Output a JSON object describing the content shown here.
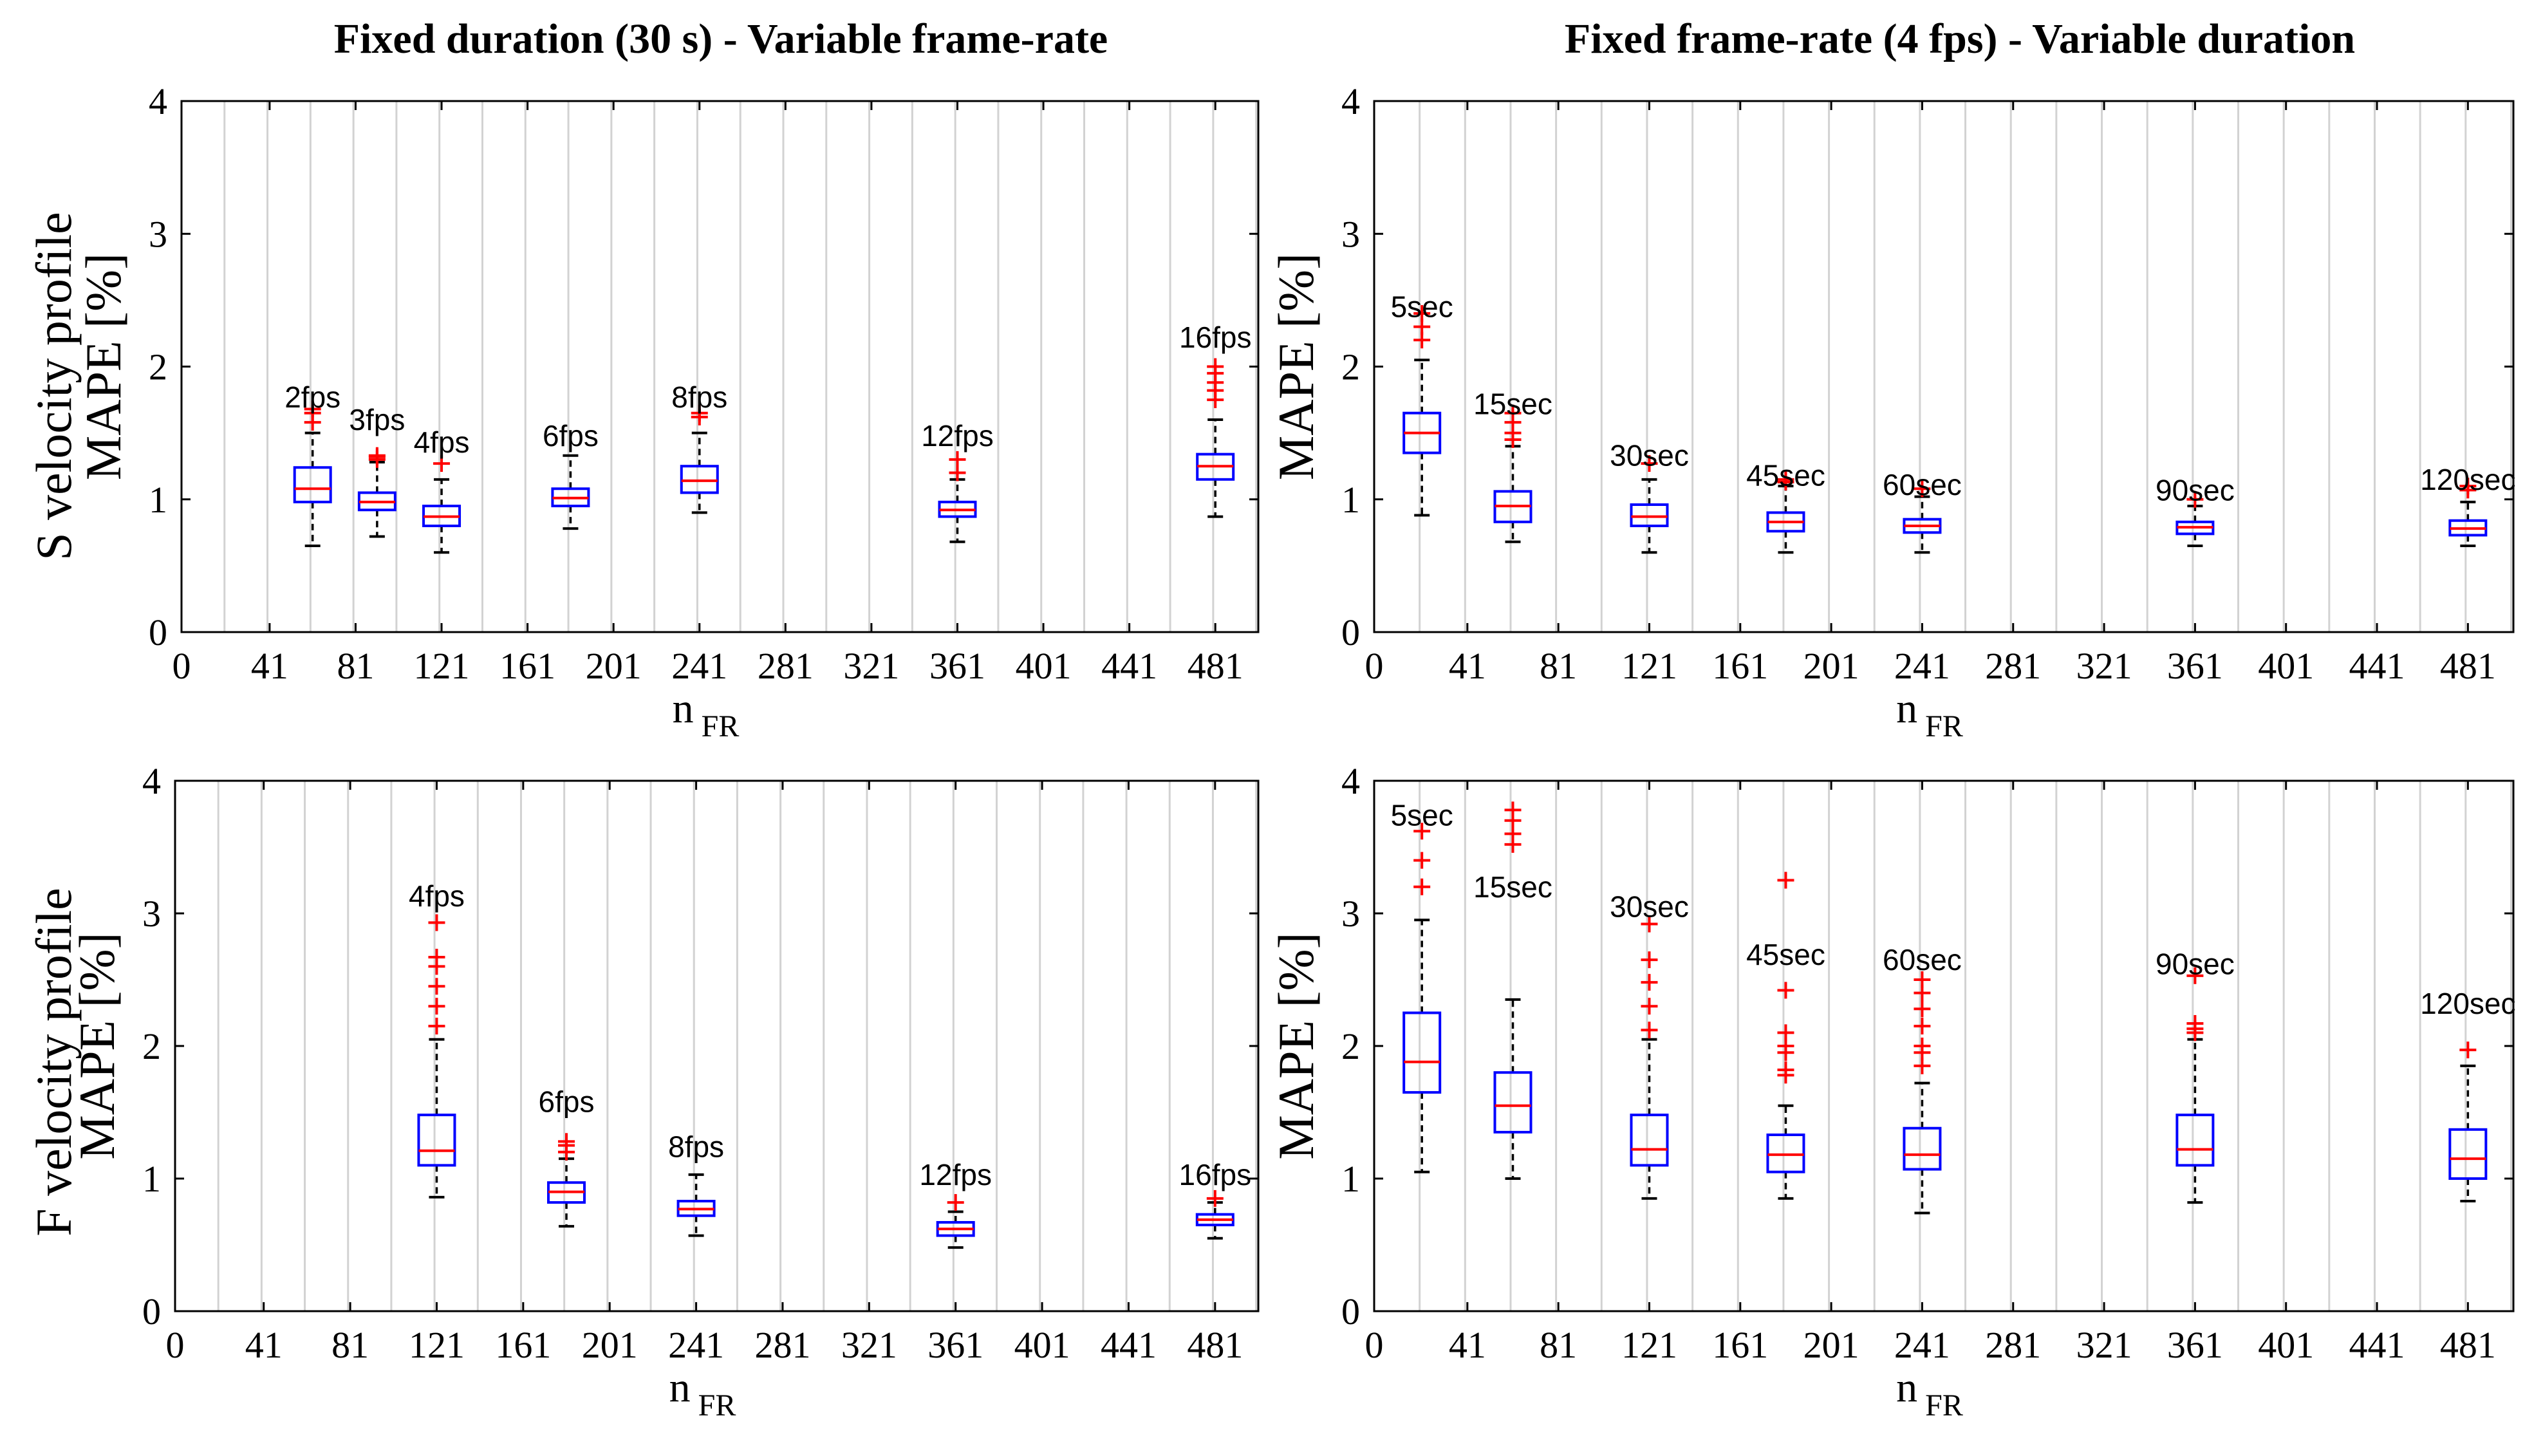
{
  "column_titles": {
    "left": "Fixed duration (30 s) - Variable frame-rate",
    "right": "Fixed frame-rate (4 fps) - Variable duration"
  },
  "row_labels": {
    "top": "S velocity profile",
    "bottom": "F velocity profile"
  },
  "y_unit_label": "MAPE [%]",
  "x_label": {
    "main": "n",
    "sub": "FR"
  },
  "chart_data": [
    {
      "id": "s_fixed_duration",
      "type": "box",
      "title": "Fixed duration (30 s) - Variable frame-rate",
      "ylabel": "S velocity profile MAPE [%]",
      "xlabel": "nFR",
      "xlim": [
        0,
        501
      ],
      "ylim": [
        0,
        4
      ],
      "xticks": [
        0,
        41,
        81,
        121,
        161,
        201,
        241,
        281,
        321,
        361,
        401,
        441,
        481
      ],
      "yticks": [
        0,
        1,
        2,
        3,
        4
      ],
      "grid": "vertical",
      "boxes": [
        {
          "x": 61,
          "label": "2fps",
          "label_y": 1.77,
          "q1": 0.98,
          "median": 1.08,
          "q3": 1.24,
          "lo": 0.65,
          "hi": 1.5,
          "outliers": [
            1.58,
            1.65,
            1.68
          ]
        },
        {
          "x": 91,
          "label": "3fps",
          "label_y": 1.6,
          "q1": 0.92,
          "median": 0.98,
          "q3": 1.05,
          "lo": 0.72,
          "hi": 1.28,
          "outliers": [
            1.3,
            1.32,
            1.33
          ]
        },
        {
          "x": 121,
          "label": "4fps",
          "label_y": 1.43,
          "q1": 0.8,
          "median": 0.87,
          "q3": 0.95,
          "lo": 0.6,
          "hi": 1.15,
          "outliers": [
            1.27
          ]
        },
        {
          "x": 181,
          "label": "6fps",
          "label_y": 1.48,
          "q1": 0.95,
          "median": 1.01,
          "q3": 1.08,
          "lo": 0.78,
          "hi": 1.33,
          "outliers": []
        },
        {
          "x": 241,
          "label": "8fps",
          "label_y": 1.77,
          "q1": 1.05,
          "median": 1.14,
          "q3": 1.25,
          "lo": 0.9,
          "hi": 1.5,
          "outliers": [
            1.62,
            1.65
          ]
        },
        {
          "x": 361,
          "label": "12fps",
          "label_y": 1.48,
          "q1": 0.87,
          "median": 0.92,
          "q3": 0.98,
          "lo": 0.68,
          "hi": 1.15,
          "outliers": [
            1.2,
            1.3
          ]
        },
        {
          "x": 481,
          "label": "16fps",
          "label_y": 2.22,
          "q1": 1.15,
          "median": 1.25,
          "q3": 1.34,
          "lo": 0.87,
          "hi": 1.6,
          "outliers": [
            1.75,
            1.82,
            1.88,
            1.95,
            2.0
          ]
        }
      ]
    },
    {
      "id": "s_fixed_framerate",
      "type": "box",
      "title": "Fixed frame-rate (4 fps) - Variable duration",
      "ylabel": "S velocity profile MAPE [%]",
      "xlabel": "nFR",
      "xlim": [
        0,
        501
      ],
      "ylim": [
        0,
        4
      ],
      "xticks": [
        0,
        41,
        81,
        121,
        161,
        201,
        241,
        281,
        321,
        361,
        401,
        441,
        481
      ],
      "yticks": [
        0,
        1,
        2,
        3,
        4
      ],
      "grid": "vertical",
      "boxes": [
        {
          "x": 21,
          "label": "5sec",
          "label_y": 2.45,
          "q1": 1.35,
          "median": 1.5,
          "q3": 1.65,
          "lo": 0.88,
          "hi": 2.05,
          "outliers": [
            2.2,
            2.3,
            2.4
          ]
        },
        {
          "x": 61,
          "label": "15sec",
          "label_y": 1.72,
          "q1": 0.83,
          "median": 0.95,
          "q3": 1.06,
          "lo": 0.68,
          "hi": 1.4,
          "outliers": [
            1.45,
            1.5,
            1.58,
            1.65
          ]
        },
        {
          "x": 121,
          "label": "30sec",
          "label_y": 1.33,
          "q1": 0.8,
          "median": 0.87,
          "q3": 0.96,
          "lo": 0.6,
          "hi": 1.15,
          "outliers": [
            1.27
          ]
        },
        {
          "x": 181,
          "label": "45sec",
          "label_y": 1.18,
          "q1": 0.76,
          "median": 0.83,
          "q3": 0.9,
          "lo": 0.6,
          "hi": 1.1,
          "outliers": [
            1.13,
            1.15
          ]
        },
        {
          "x": 241,
          "label": "60sec",
          "label_y": 1.11,
          "q1": 0.75,
          "median": 0.8,
          "q3": 0.85,
          "lo": 0.6,
          "hi": 1.02,
          "outliers": [
            1.08
          ]
        },
        {
          "x": 361,
          "label": "90sec",
          "label_y": 1.07,
          "q1": 0.74,
          "median": 0.79,
          "q3": 0.83,
          "lo": 0.65,
          "hi": 0.95,
          "outliers": [
            1.0
          ]
        },
        {
          "x": 481,
          "label": "120sec",
          "label_y": 1.15,
          "q1": 0.73,
          "median": 0.78,
          "q3": 0.84,
          "lo": 0.65,
          "hi": 0.98,
          "outliers": [
            1.07,
            1.1
          ]
        }
      ]
    },
    {
      "id": "f_fixed_duration",
      "type": "box",
      "title": "Fixed duration (30 s) - Variable frame-rate",
      "ylabel": "F velocity profile MAPE [%]",
      "xlabel": "nFR",
      "xlim": [
        0,
        501
      ],
      "ylim": [
        0,
        4
      ],
      "xticks": [
        0,
        41,
        81,
        121,
        161,
        201,
        241,
        281,
        321,
        361,
        401,
        441,
        481
      ],
      "yticks": [
        0,
        1,
        2,
        3,
        4
      ],
      "grid": "vertical",
      "boxes": [
        {
          "x": 121,
          "label": "4fps",
          "label_y": 3.13,
          "q1": 1.1,
          "median": 1.21,
          "q3": 1.48,
          "lo": 0.86,
          "hi": 2.05,
          "outliers": [
            2.15,
            2.3,
            2.45,
            2.6,
            2.67,
            2.93
          ]
        },
        {
          "x": 181,
          "label": "6fps",
          "label_y": 1.58,
          "q1": 0.82,
          "median": 0.9,
          "q3": 0.97,
          "lo": 0.64,
          "hi": 1.15,
          "outliers": [
            1.2,
            1.25,
            1.28
          ]
        },
        {
          "x": 241,
          "label": "8fps",
          "label_y": 1.24,
          "q1": 0.72,
          "median": 0.77,
          "q3": 0.83,
          "lo": 0.57,
          "hi": 1.03,
          "outliers": []
        },
        {
          "x": 361,
          "label": "12fps",
          "label_y": 1.03,
          "q1": 0.57,
          "median": 0.62,
          "q3": 0.67,
          "lo": 0.48,
          "hi": 0.75,
          "outliers": [
            0.82
          ]
        },
        {
          "x": 481,
          "label": "16fps",
          "label_y": 1.03,
          "q1": 0.65,
          "median": 0.69,
          "q3": 0.73,
          "lo": 0.55,
          "hi": 0.82,
          "outliers": [
            0.85
          ]
        }
      ]
    },
    {
      "id": "f_fixed_framerate",
      "type": "box",
      "title": "Fixed frame-rate (4 fps) - Variable duration",
      "ylabel": "F velocity profile MAPE [%]",
      "xlabel": "nFR",
      "xlim": [
        0,
        501
      ],
      "ylim": [
        0,
        4
      ],
      "xticks": [
        0,
        41,
        81,
        121,
        161,
        201,
        241,
        281,
        321,
        361,
        401,
        441,
        481
      ],
      "yticks": [
        0,
        1,
        2,
        3,
        4
      ],
      "grid": "vertical",
      "boxes": [
        {
          "x": 21,
          "label": "5sec",
          "label_y": 3.74,
          "q1": 1.65,
          "median": 1.88,
          "q3": 2.25,
          "lo": 1.05,
          "hi": 2.95,
          "outliers": [
            3.2,
            3.4,
            3.62
          ]
        },
        {
          "x": 61,
          "label": "15sec",
          "label_y": 3.2,
          "q1": 1.35,
          "median": 1.55,
          "q3": 1.8,
          "lo": 1.0,
          "hi": 2.35,
          "outliers": [
            3.52,
            3.6,
            3.7,
            3.78
          ]
        },
        {
          "x": 121,
          "label": "30sec",
          "label_y": 3.05,
          "q1": 1.1,
          "median": 1.22,
          "q3": 1.48,
          "lo": 0.85,
          "hi": 2.05,
          "outliers": [
            2.12,
            2.3,
            2.48,
            2.65,
            2.92
          ]
        },
        {
          "x": 181,
          "label": "45sec",
          "label_y": 2.69,
          "q1": 1.05,
          "median": 1.18,
          "q3": 1.33,
          "lo": 0.85,
          "hi": 1.55,
          "outliers": [
            1.78,
            1.82,
            1.95,
            2.0,
            2.1,
            2.42,
            3.25
          ]
        },
        {
          "x": 241,
          "label": "60sec",
          "label_y": 2.65,
          "q1": 1.07,
          "median": 1.18,
          "q3": 1.38,
          "lo": 0.74,
          "hi": 1.72,
          "outliers": [
            1.85,
            1.95,
            2.0,
            2.15,
            2.28,
            2.4,
            2.5
          ]
        },
        {
          "x": 361,
          "label": "90sec",
          "label_y": 2.62,
          "q1": 1.1,
          "median": 1.22,
          "q3": 1.48,
          "lo": 0.82,
          "hi": 2.05,
          "outliers": [
            2.1,
            2.13,
            2.17,
            2.53
          ]
        },
        {
          "x": 481,
          "label": "120sec",
          "label_y": 2.32,
          "q1": 1.0,
          "median": 1.15,
          "q3": 1.37,
          "lo": 0.83,
          "hi": 1.85,
          "outliers": [
            1.97
          ]
        }
      ]
    }
  ]
}
